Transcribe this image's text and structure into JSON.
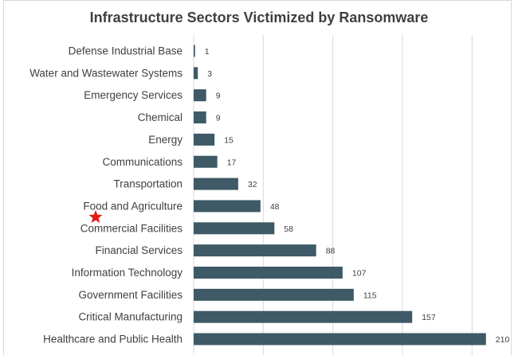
{
  "chart_data": {
    "type": "bar",
    "orientation": "horizontal",
    "title": "Infrastructure Sectors Victimized by Ransomware",
    "xlabel": "",
    "ylabel": "",
    "xlim": [
      0,
      225
    ],
    "grid": true,
    "categories": [
      "Defense Industrial Base",
      "Water and Wastewater Systems",
      "Emergency Services",
      "Chemical",
      "Energy",
      "Communications",
      "Transportation",
      "Food and Agriculture",
      "Commercial Facilities",
      "Financial Services",
      "Information Technology",
      "Government Facilities",
      "Critical Manufacturing",
      "Healthcare and Public Health"
    ],
    "values": [
      1,
      3,
      9,
      9,
      15,
      17,
      32,
      48,
      58,
      88,
      107,
      115,
      157,
      210
    ],
    "value_labels": [
      "1",
      "3",
      "9",
      "9",
      "15",
      "17",
      "32",
      "48",
      "58",
      "88",
      "107",
      "115",
      "157",
      "210"
    ],
    "bar_color": "#3d5a66",
    "annotations": [
      {
        "type": "star-marker",
        "near_category": "Commercial Facilities",
        "color": "#e31b1b"
      }
    ]
  }
}
